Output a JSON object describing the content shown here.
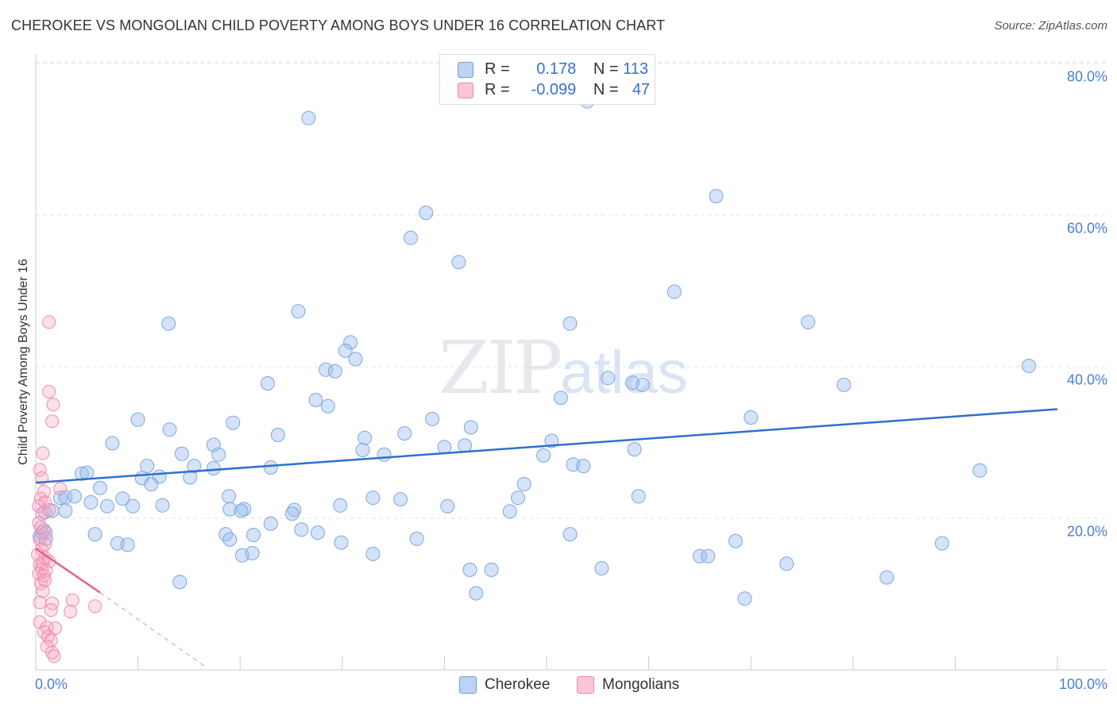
{
  "title": "CHEROKEE VS MONGOLIAN CHILD POVERTY AMONG BOYS UNDER 16 CORRELATION CHART",
  "source": "Source: ZipAtlas.com",
  "watermark": {
    "zip": "ZIP",
    "atlas": "atlas"
  },
  "legend": {
    "rows": [
      {
        "r_label": "R =",
        "r_value": "0.178",
        "n_label": "N =",
        "n_value": "113",
        "color": "#6d9be0"
      },
      {
        "r_label": "R =",
        "r_value": "-0.099",
        "n_label": "N =",
        "n_value": "47",
        "color": "#f08aab"
      }
    ]
  },
  "bottom_legend": [
    {
      "label": "Cherokee",
      "color": "#6d9be0"
    },
    {
      "label": "Mongolians",
      "color": "#f08aab"
    }
  ],
  "chart_data": {
    "type": "scatter",
    "title": "CHEROKEE VS MONGOLIAN CHILD POVERTY AMONG BOYS UNDER 16 CORRELATION CHART",
    "xlabel": "",
    "ylabel": "Child Poverty Among Boys Under 16",
    "xlim": [
      0,
      100
    ],
    "ylim": [
      0,
      82
    ],
    "x_tick_labels": [
      "0.0%",
      "100.0%"
    ],
    "y_ticks": [
      20,
      40,
      60,
      80
    ],
    "y_tick_labels": [
      "20.0%",
      "40.0%",
      "60.0%",
      "80.0%"
    ],
    "grid": true,
    "series": [
      {
        "name": "Cherokee",
        "color": "#6d9be0",
        "trend": {
          "x": [
            0,
            100
          ],
          "y": [
            24.7,
            34.4
          ]
        },
        "points": [
          [
            26.7,
            72.8
          ],
          [
            54.0,
            75.0
          ],
          [
            38.2,
            60.3
          ],
          [
            66.6,
            62.5
          ],
          [
            36.7,
            57.0
          ],
          [
            41.4,
            53.8
          ],
          [
            62.5,
            49.9
          ],
          [
            25.7,
            47.3
          ],
          [
            13.0,
            45.7
          ],
          [
            52.3,
            45.7
          ],
          [
            75.6,
            45.9
          ],
          [
            30.8,
            43.2
          ],
          [
            30.3,
            42.1
          ],
          [
            31.3,
            41.0
          ],
          [
            28.4,
            39.6
          ],
          [
            29.3,
            39.4
          ],
          [
            56.0,
            38.5
          ],
          [
            97.2,
            40.1
          ],
          [
            58.4,
            37.9
          ],
          [
            59.4,
            37.6
          ],
          [
            79.1,
            37.6
          ],
          [
            22.7,
            37.8
          ],
          [
            27.4,
            35.6
          ],
          [
            28.6,
            34.8
          ],
          [
            51.4,
            35.9
          ],
          [
            10.0,
            33.0
          ],
          [
            19.3,
            32.6
          ],
          [
            38.8,
            33.1
          ],
          [
            42.6,
            32.0
          ],
          [
            70.0,
            33.3
          ],
          [
            13.1,
            31.7
          ],
          [
            23.7,
            31.0
          ],
          [
            32.2,
            30.6
          ],
          [
            36.1,
            31.2
          ],
          [
            7.5,
            29.9
          ],
          [
            17.4,
            29.7
          ],
          [
            14.3,
            28.5
          ],
          [
            17.9,
            28.4
          ],
          [
            32.0,
            29.0
          ],
          [
            34.1,
            28.4
          ],
          [
            40.0,
            29.4
          ],
          [
            42.0,
            29.6
          ],
          [
            50.5,
            30.2
          ],
          [
            58.6,
            29.1
          ],
          [
            49.7,
            28.3
          ],
          [
            10.9,
            26.9
          ],
          [
            15.5,
            26.9
          ],
          [
            17.4,
            26.6
          ],
          [
            23.0,
            26.7
          ],
          [
            52.6,
            27.1
          ],
          [
            53.6,
            26.9
          ],
          [
            92.4,
            26.3
          ],
          [
            4.5,
            25.9
          ],
          [
            5.0,
            26.0
          ],
          [
            10.4,
            25.3
          ],
          [
            12.1,
            25.5
          ],
          [
            15.1,
            25.4
          ],
          [
            6.3,
            24.0
          ],
          [
            11.3,
            24.5
          ],
          [
            47.8,
            24.5
          ],
          [
            2.4,
            22.7
          ],
          [
            2.9,
            22.8
          ],
          [
            3.8,
            22.9
          ],
          [
            5.4,
            22.1
          ],
          [
            8.5,
            22.6
          ],
          [
            18.9,
            22.9
          ],
          [
            33.0,
            22.7
          ],
          [
            35.7,
            22.5
          ],
          [
            47.2,
            22.7
          ],
          [
            59.0,
            22.9
          ],
          [
            7.0,
            21.6
          ],
          [
            9.5,
            21.6
          ],
          [
            12.4,
            21.7
          ],
          [
            19.0,
            21.2
          ],
          [
            20.4,
            21.2
          ],
          [
            20.1,
            21.0
          ],
          [
            25.3,
            21.1
          ],
          [
            29.8,
            21.7
          ],
          [
            40.3,
            21.6
          ],
          [
            46.4,
            20.9
          ],
          [
            0.9,
            20.8
          ],
          [
            1.6,
            21.0
          ],
          [
            2.9,
            21.0
          ],
          [
            25.1,
            20.6
          ],
          [
            23.0,
            19.3
          ],
          [
            26.0,
            18.5
          ],
          [
            27.6,
            18.1
          ],
          [
            18.6,
            17.9
          ],
          [
            19.0,
            17.2
          ],
          [
            5.8,
            17.9
          ],
          [
            8.0,
            16.7
          ],
          [
            9.0,
            16.5
          ],
          [
            21.3,
            17.8
          ],
          [
            29.9,
            16.8
          ],
          [
            37.3,
            17.3
          ],
          [
            52.3,
            17.9
          ],
          [
            68.5,
            17.0
          ],
          [
            88.7,
            16.7
          ],
          [
            20.2,
            15.1
          ],
          [
            21.2,
            15.4
          ],
          [
            33.0,
            15.3
          ],
          [
            65.0,
            15.0
          ],
          [
            65.8,
            15.0
          ],
          [
            73.5,
            14.0
          ],
          [
            83.3,
            12.2
          ],
          [
            42.5,
            13.2
          ],
          [
            44.6,
            13.2
          ],
          [
            55.4,
            13.4
          ],
          [
            14.1,
            11.6
          ],
          [
            43.1,
            10.1
          ],
          [
            69.4,
            9.4
          ],
          [
            0.6,
            18.1
          ],
          [
            0.4,
            17.6
          ],
          [
            0.8,
            18.4
          ],
          [
            1.0,
            17.3
          ]
        ]
      },
      {
        "name": "Mongolians",
        "color": "#f08aab",
        "trend": {
          "x": [
            0,
            6.3
          ],
          "y": [
            16.0,
            10.2
          ]
        },
        "trend_dashed": {
          "x": [
            6.3,
            16.5
          ],
          "y": [
            10.2,
            0.5
          ]
        },
        "points": [
          [
            1.3,
            45.9
          ],
          [
            1.3,
            36.7
          ],
          [
            1.7,
            35.0
          ],
          [
            1.6,
            32.8
          ],
          [
            0.7,
            28.6
          ],
          [
            0.4,
            26.4
          ],
          [
            0.6,
            25.3
          ],
          [
            0.8,
            23.5
          ],
          [
            2.4,
            23.9
          ],
          [
            0.5,
            22.6
          ],
          [
            0.9,
            22.1
          ],
          [
            0.3,
            21.6
          ],
          [
            0.6,
            20.6
          ],
          [
            1.3,
            21.1
          ],
          [
            0.3,
            19.4
          ],
          [
            0.5,
            18.8
          ],
          [
            1.0,
            18.1
          ],
          [
            0.4,
            17.2
          ],
          [
            0.9,
            16.6
          ],
          [
            0.6,
            15.9
          ],
          [
            0.2,
            15.2
          ],
          [
            0.9,
            14.8
          ],
          [
            0.7,
            14.1
          ],
          [
            1.3,
            14.3
          ],
          [
            0.4,
            13.9
          ],
          [
            0.6,
            13.3
          ],
          [
            1.0,
            13.1
          ],
          [
            0.3,
            12.7
          ],
          [
            0.8,
            12.4
          ],
          [
            0.5,
            11.4
          ],
          [
            0.9,
            11.8
          ],
          [
            0.7,
            10.4
          ],
          [
            3.6,
            9.2
          ],
          [
            0.4,
            8.9
          ],
          [
            1.6,
            8.8
          ],
          [
            1.5,
            7.9
          ],
          [
            3.4,
            7.7
          ],
          [
            5.8,
            8.4
          ],
          [
            0.4,
            6.3
          ],
          [
            1.1,
            5.6
          ],
          [
            1.9,
            5.5
          ],
          [
            0.8,
            5.0
          ],
          [
            1.2,
            4.4
          ],
          [
            1.5,
            3.9
          ],
          [
            1.1,
            3.1
          ],
          [
            1.6,
            2.3
          ],
          [
            1.8,
            1.8
          ]
        ]
      }
    ]
  }
}
